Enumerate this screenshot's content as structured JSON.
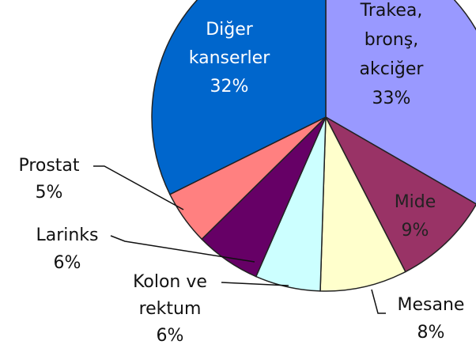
{
  "chart_data": {
    "type": "pie",
    "categories": [
      "Trakea,\nbronş,\nakciğer",
      "Mide",
      "Mesane",
      "Kolon ve\nrektum",
      "Larinks",
      "Prostat",
      "Diğer\nkanserler"
    ],
    "values": [
      33,
      9,
      8,
      6,
      6,
      5,
      32
    ],
    "value_labels": [
      "33%",
      "9%",
      "8%",
      "6%",
      "6%",
      "5%",
      "32%"
    ],
    "colors": [
      "#9999ff",
      "#993366",
      "#ffffcc",
      "#ccffff",
      "#660066",
      "#ff8080",
      "#0066cc"
    ]
  }
}
